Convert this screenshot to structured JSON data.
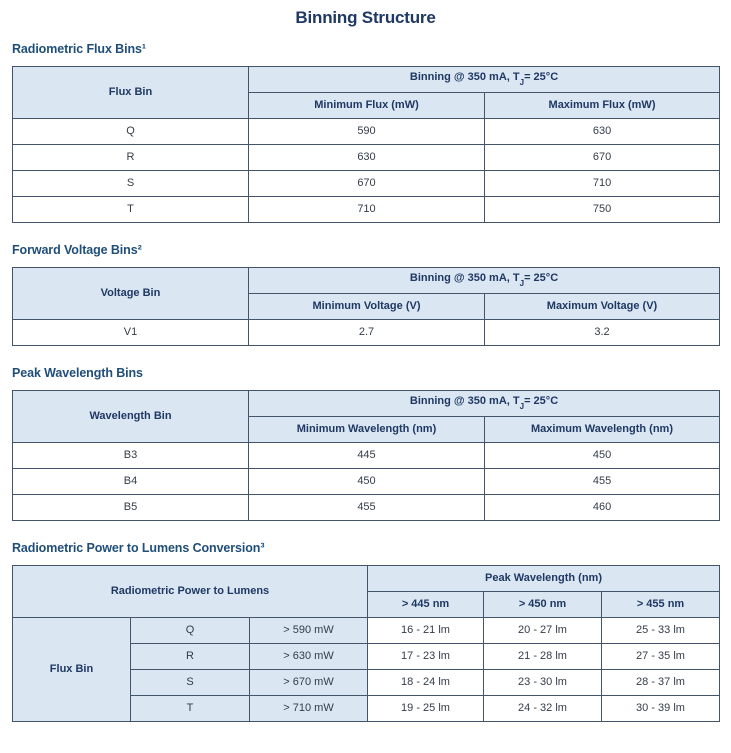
{
  "title": "Binning Structure",
  "colors": {
    "header_bg": "#dae6f1",
    "border_col": "#44546a",
    "title_navy": "#1f3864",
    "heading_blue": "#1f4e79",
    "data_text": "#333d49"
  },
  "sections": {
    "flux": {
      "heading": "Radiometric Flux Bins¹",
      "corner": "Flux Bin",
      "cond_pre": "Binning @ 350 mA, T",
      "cond_sub": "J",
      "cond_post": "= 25°C",
      "col_min": "Minimum Flux (mW)",
      "col_max": "Maximum Flux (mW)",
      "rows": [
        {
          "bin": "Q",
          "min": "590",
          "max": "630"
        },
        {
          "bin": "R",
          "min": "630",
          "max": "670"
        },
        {
          "bin": "S",
          "min": "670",
          "max": "710"
        },
        {
          "bin": "T",
          "min": "710",
          "max": "750"
        }
      ]
    },
    "voltage": {
      "heading": "Forward Voltage Bins²",
      "corner": "Voltage Bin",
      "cond_pre": "Binning @ 350 mA, T",
      "cond_sub": "J",
      "cond_post": "= 25°C",
      "col_min": "Minimum Voltage (V)",
      "col_max": "Maximum Voltage (V)",
      "rows": [
        {
          "bin": "V1",
          "min": "2.7",
          "max": "3.2"
        }
      ]
    },
    "wavelength": {
      "heading": "Peak Wavelength Bins",
      "corner": "Wavelength Bin",
      "cond_pre": "Binning @ 350 mA, T",
      "cond_sub": "J",
      "cond_post": "= 25°C",
      "col_min": "Minimum Wavelength (nm)",
      "col_max": "Maximum Wavelength (nm)",
      "rows": [
        {
          "bin": "B3",
          "min": "445",
          "max": "450"
        },
        {
          "bin": "B4",
          "min": "450",
          "max": "455"
        },
        {
          "bin": "B5",
          "min": "455",
          "max": "460"
        }
      ]
    },
    "conversion": {
      "heading": "Radiometric Power to Lumens Conversion³",
      "corner": "Radiometric Power to Lumens",
      "group_header": "Peak Wavelength (nm)",
      "col_445": "> 445 nm",
      "col_450": "> 450 nm",
      "col_455": "> 455 nm",
      "row_label": "Flux Bin",
      "rows": [
        {
          "bin": "Q",
          "power": "> 590 mW",
          "lm445": "16 - 21 lm",
          "lm450": "20 - 27 lm",
          "lm455": "25 - 33 lm"
        },
        {
          "bin": "R",
          "power": "> 630 mW",
          "lm445": "17 - 23 lm",
          "lm450": "21 - 28 lm",
          "lm455": "27 - 35 lm"
        },
        {
          "bin": "S",
          "power": "> 670 mW",
          "lm445": "18 - 24 lm",
          "lm450": "23 - 30 lm",
          "lm455": "28 - 37 lm"
        },
        {
          "bin": "T",
          "power": "> 710 mW",
          "lm445": "19 - 25 lm",
          "lm450": "24 - 32 lm",
          "lm455": "30 - 39 lm"
        }
      ]
    }
  }
}
